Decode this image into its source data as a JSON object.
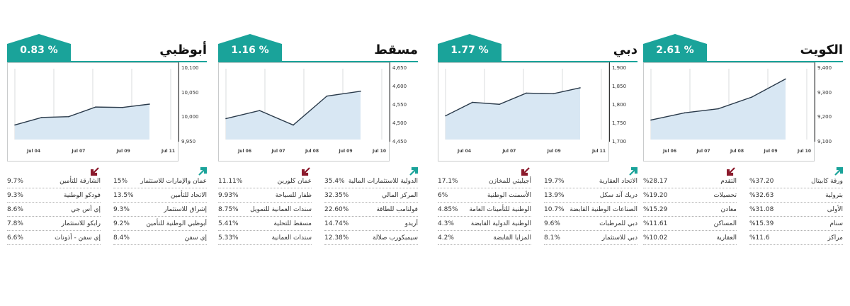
{
  "colors": {
    "teal": "#1aa39a",
    "maroon": "#8b1a2c",
    "fill": "#d8e7f3",
    "line": "#2a3a4a"
  },
  "panels": [
    {
      "city": "الكويت",
      "change": "% 2.61",
      "chart_data": {
        "type": "area",
        "x": [
          "Jul 06",
          "Jul 07",
          "Jul 08",
          "Jul 09",
          "Jul 10"
        ],
        "y_ticks": [
          "9,400",
          "9,300",
          "9,200",
          "9,100"
        ],
        "ylim": [
          9075,
          9420
        ],
        "points": [
          9170,
          9205,
          9225,
          9282,
          9370
        ],
        "title": "",
        "xlabel": "",
        "ylabel": ""
      },
      "gainers": [
        {
          "name": "ورقة كابيتال",
          "pct": "%37.20"
        },
        {
          "name": "بترولية",
          "pct": "%32.63"
        },
        {
          "name": "الأولى",
          "pct": "%31.08"
        },
        {
          "name": "سنام",
          "pct": "%15.39"
        },
        {
          "name": "مراكز",
          "pct": "%11.6"
        }
      ],
      "losers": [
        {
          "name": "التقدم",
          "pct": "%28.17"
        },
        {
          "name": "تحصيلات",
          "pct": "%19.20"
        },
        {
          "name": "معادن",
          "pct": "%15.29"
        },
        {
          "name": "المساكن",
          "pct": "%11.61"
        },
        {
          "name": "العقارية",
          "pct": "%10.02"
        }
      ]
    },
    {
      "city": "دبي",
      "change": "% 1.77",
      "chart_data": {
        "type": "area",
        "x": [
          "Jul 04",
          "Jul 07",
          "Jul 09",
          "Jul 11"
        ],
        "y_ticks": [
          "1,900",
          "1,850",
          "1,800",
          "1,750",
          "1,700"
        ],
        "ylim": [
          1690,
          1905
        ],
        "points": [
          1762,
          1803,
          1797,
          1831,
          1829,
          1847
        ],
        "title": "",
        "xlabel": "",
        "ylabel": ""
      },
      "gainers": [
        {
          "name": "الاتحاد العقارية",
          "pct": "19.7%"
        },
        {
          "name": "دريك آند سكل",
          "pct": "13.9%"
        },
        {
          "name": "الصناعات الوطنية القابضة",
          "pct": "10.7%"
        },
        {
          "name": "دبي للمرطبات",
          "pct": "9.6%"
        },
        {
          "name": "دبي للاستثمار",
          "pct": "8.1%"
        }
      ],
      "losers": [
        {
          "name": "أجيليتي للمخازن",
          "pct": "17.1%"
        },
        {
          "name": "الأسمنت الوطنية",
          "pct": "6%"
        },
        {
          "name": "الوطنية للتأمينات العامة",
          "pct": "4.85%"
        },
        {
          "name": "الوطنية الدولية القابضة",
          "pct": "4.3%"
        },
        {
          "name": "المزايا القابضة",
          "pct": "4.2%"
        }
      ]
    },
    {
      "city": "مسقط",
      "change": "% 1.16",
      "chart_data": {
        "type": "area",
        "x": [
          "Jul 06",
          "Jul 07",
          "Jul 08",
          "Jul 09",
          "Jul 10"
        ],
        "y_ticks": [
          "4,650",
          "4,600",
          "4,550",
          "4,500",
          "4,450"
        ],
        "ylim": [
          4440,
          4660
        ],
        "points": [
          4505,
          4530,
          4485,
          4575,
          4590
        ],
        "title": "",
        "xlabel": "",
        "ylabel": ""
      },
      "gainers": [
        {
          "name": "الدولية للاستثمارات المالية",
          "pct": "35.4%"
        },
        {
          "name": "المركز المالي",
          "pct": "32.35%"
        },
        {
          "name": "فولتامب للطاقة",
          "pct": "22.60%"
        },
        {
          "name": "أريدو",
          "pct": "14.74%"
        },
        {
          "name": "سيمبكورب صلالة",
          "pct": "12.38%"
        }
      ],
      "losers": [
        {
          "name": "عمان كلورين",
          "pct": "11.11%"
        },
        {
          "name": "ظفار للسياحة",
          "pct": "9.93%"
        },
        {
          "name": "سندات العمانية للتمويل",
          "pct": "8.75%"
        },
        {
          "name": "مسقط للتحلية",
          "pct": "5.41%"
        },
        {
          "name": "سندات العمانية",
          "pct": "5.33%"
        }
      ]
    },
    {
      "city": "أبوظبي",
      "change": "% 0.83",
      "chart_data": {
        "type": "area",
        "x": [
          "Jul 04",
          "Jul 07",
          "Jul 09",
          "Jul 11"
        ],
        "y_ticks": [
          "10,100",
          "10,050",
          "10,000",
          "9,950"
        ],
        "ylim": [
          9935,
          10105
        ],
        "points": [
          9970,
          9988,
          9990,
          10013,
          10012,
          10020
        ],
        "title": "",
        "xlabel": "",
        "ylabel": ""
      },
      "gainers": [
        {
          "name": "عمان والإمارات للاستثمار",
          "pct": "15%"
        },
        {
          "name": "الاتحاد للتأمين",
          "pct": "13.5%"
        },
        {
          "name": "إشراق للاستثمار",
          "pct": "9.3%"
        },
        {
          "name": "أبوظبي الوطنية للتأمين",
          "pct": "9.2%"
        },
        {
          "name": "إي سفن",
          "pct": "8.4%"
        }
      ],
      "losers": [
        {
          "name": "الشارقة للتأمين",
          "pct": "9.7%"
        },
        {
          "name": "فودكو الوطنية",
          "pct": "9.3%"
        },
        {
          "name": "إي أس جي",
          "pct": "8.6%"
        },
        {
          "name": "رابكو للاستثمار",
          "pct": "7.8%"
        },
        {
          "name": "إي سفن - أذونات",
          "pct": "6.6%"
        }
      ]
    }
  ]
}
